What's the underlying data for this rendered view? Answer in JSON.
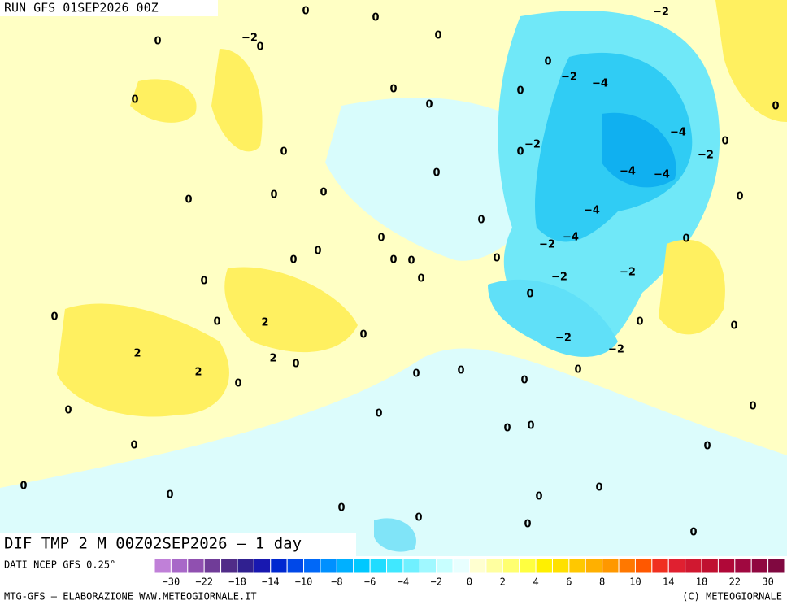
{
  "header": {
    "run": "RUN GFS 01SEP2026 00Z"
  },
  "map": {
    "title": "DIF TMP 2 M 00Z02SEP2026 – 1 day",
    "contour_labels": [
      "0",
      "0",
      "−2",
      "0",
      "−2",
      "0",
      "0",
      "0",
      "−2",
      "−4",
      "0",
      "0",
      "0",
      "0",
      "0",
      "−4",
      "0",
      "0",
      "−2",
      "−2",
      "0",
      "0",
      "−4",
      "−4",
      "0",
      "0",
      "0",
      "0",
      "−4",
      "0",
      "0",
      "−2",
      "−4",
      "0",
      "0",
      "0",
      "0",
      "0",
      "0",
      "−2",
      "−2",
      "0",
      "0",
      "0",
      "0",
      "0",
      "2",
      "0",
      "0",
      "0",
      "−2",
      "2",
      "−2",
      "2",
      "0",
      "2",
      "0",
      "0",
      "0",
      "0",
      "0",
      "0",
      "0",
      "0",
      "0",
      "0",
      "0",
      "0",
      "0",
      "0",
      "0",
      "0",
      "0",
      "0",
      "0",
      "0"
    ]
  },
  "legend": {
    "source": "DATI NCEP GFS 0.25°",
    "labels": [
      "−30",
      "−22",
      "−18",
      "−14",
      "−10",
      "−8",
      "−6",
      "−4",
      "−2",
      "0",
      "2",
      "4",
      "6",
      "8",
      "10",
      "14",
      "18",
      "22",
      "30"
    ],
    "colors": [
      "#c080d8",
      "#a868c8",
      "#9050b0",
      "#703c98",
      "#502c88",
      "#302090",
      "#1818b0",
      "#0028d0",
      "#0048e8",
      "#0068f8",
      "#0090ff",
      "#00b0ff",
      "#00c8ff",
      "#20dcff",
      "#40e8ff",
      "#70f0ff",
      "#a0f8ff",
      "#c8ffff",
      "#e8ffff",
      "#ffffd0",
      "#ffffa0",
      "#ffff70",
      "#ffff40",
      "#fff000",
      "#ffe000",
      "#ffc800",
      "#ffb000",
      "#ff9800",
      "#ff7800",
      "#ff5800",
      "#f03020",
      "#e02030",
      "#d01830",
      "#c01030",
      "#b00838",
      "#a00840",
      "#900840",
      "#800840"
    ]
  },
  "footer": {
    "credit": "MTG-GFS – ELABORAZIONE WWW.METEOGIORNALE.IT",
    "copyright": "(C) METEOGIORNALE"
  }
}
